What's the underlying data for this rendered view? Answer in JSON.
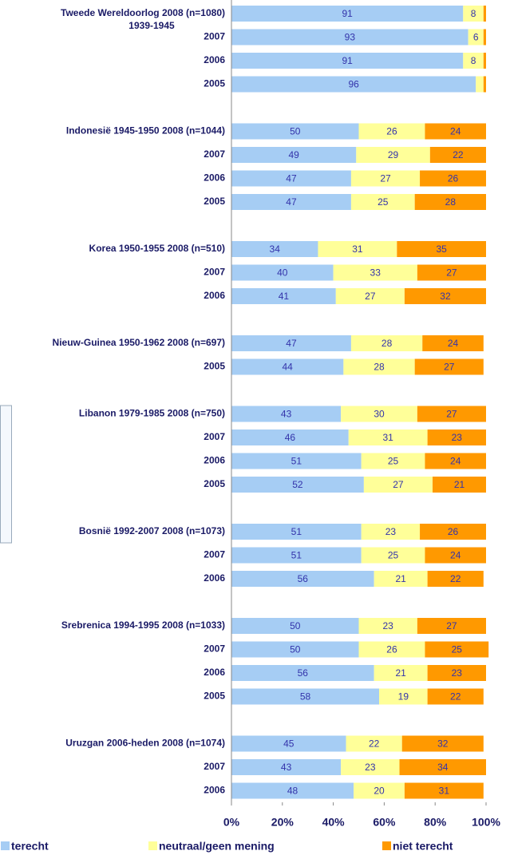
{
  "chart_data": {
    "type": "stacked_barh",
    "categories": [
      "Tweede Wereldoorlog  2008 (n=1080)",
      "2007",
      "2006",
      "2005",
      null,
      "Indonesië 1945-1950 2008 (n=1044)",
      "2007",
      "2006",
      "2005",
      null,
      "Korea 1950-1955 2008 (n=510)",
      "2007",
      "2006",
      null,
      "Nieuw-Guinea 1950-1962 2008 (n=697)",
      "2005",
      null,
      "Libanon 1979-1985 2008 (n=750)",
      "2007",
      "2006",
      "2005",
      null,
      "Bosnië 1992-2007 2008 (n=1073)",
      "2007",
      "2006",
      null,
      "Srebrenica 1994-1995 2008 (n=1033)",
      "2007",
      "2006",
      "2005",
      null,
      "Uruzgan 2006-heden 2008 (n=1074)",
      "2007",
      "2006"
    ],
    "annotations": [
      "1939-1945"
    ],
    "series": [
      {
        "name": "terecht",
        "color": "#a6cdf4",
        "values": [
          91,
          93,
          91,
          96,
          null,
          50,
          49,
          47,
          47,
          null,
          34,
          40,
          41,
          null,
          47,
          44,
          null,
          43,
          46,
          51,
          52,
          null,
          51,
          51,
          56,
          null,
          50,
          50,
          56,
          58,
          null,
          45,
          43,
          48
        ]
      },
      {
        "name": "neutraal/geen mening",
        "color": "#ffff99",
        "values": [
          8,
          6,
          8,
          3,
          null,
          26,
          29,
          27,
          25,
          null,
          31,
          33,
          27,
          null,
          28,
          28,
          null,
          30,
          31,
          25,
          27,
          null,
          23,
          25,
          21,
          null,
          23,
          26,
          21,
          19,
          null,
          22,
          23,
          20
        ]
      },
      {
        "name": "niet terecht",
        "color": "#ff9900",
        "values": [
          1,
          1,
          1,
          1,
          null,
          24,
          22,
          26,
          28,
          null,
          35,
          27,
          32,
          null,
          24,
          27,
          null,
          27,
          23,
          24,
          21,
          null,
          26,
          24,
          22,
          null,
          27,
          25,
          23,
          22,
          null,
          32,
          34,
          31
        ]
      }
    ],
    "xlim": [
      0,
      100
    ],
    "xticks": [
      {
        "value": 0,
        "label": "0%"
      },
      {
        "value": 20,
        "label": "20%"
      },
      {
        "value": 40,
        "label": "40%"
      },
      {
        "value": 60,
        "label": "60%"
      },
      {
        "value": 80,
        "label": "80%"
      },
      {
        "value": 100,
        "label": "100%"
      }
    ]
  }
}
